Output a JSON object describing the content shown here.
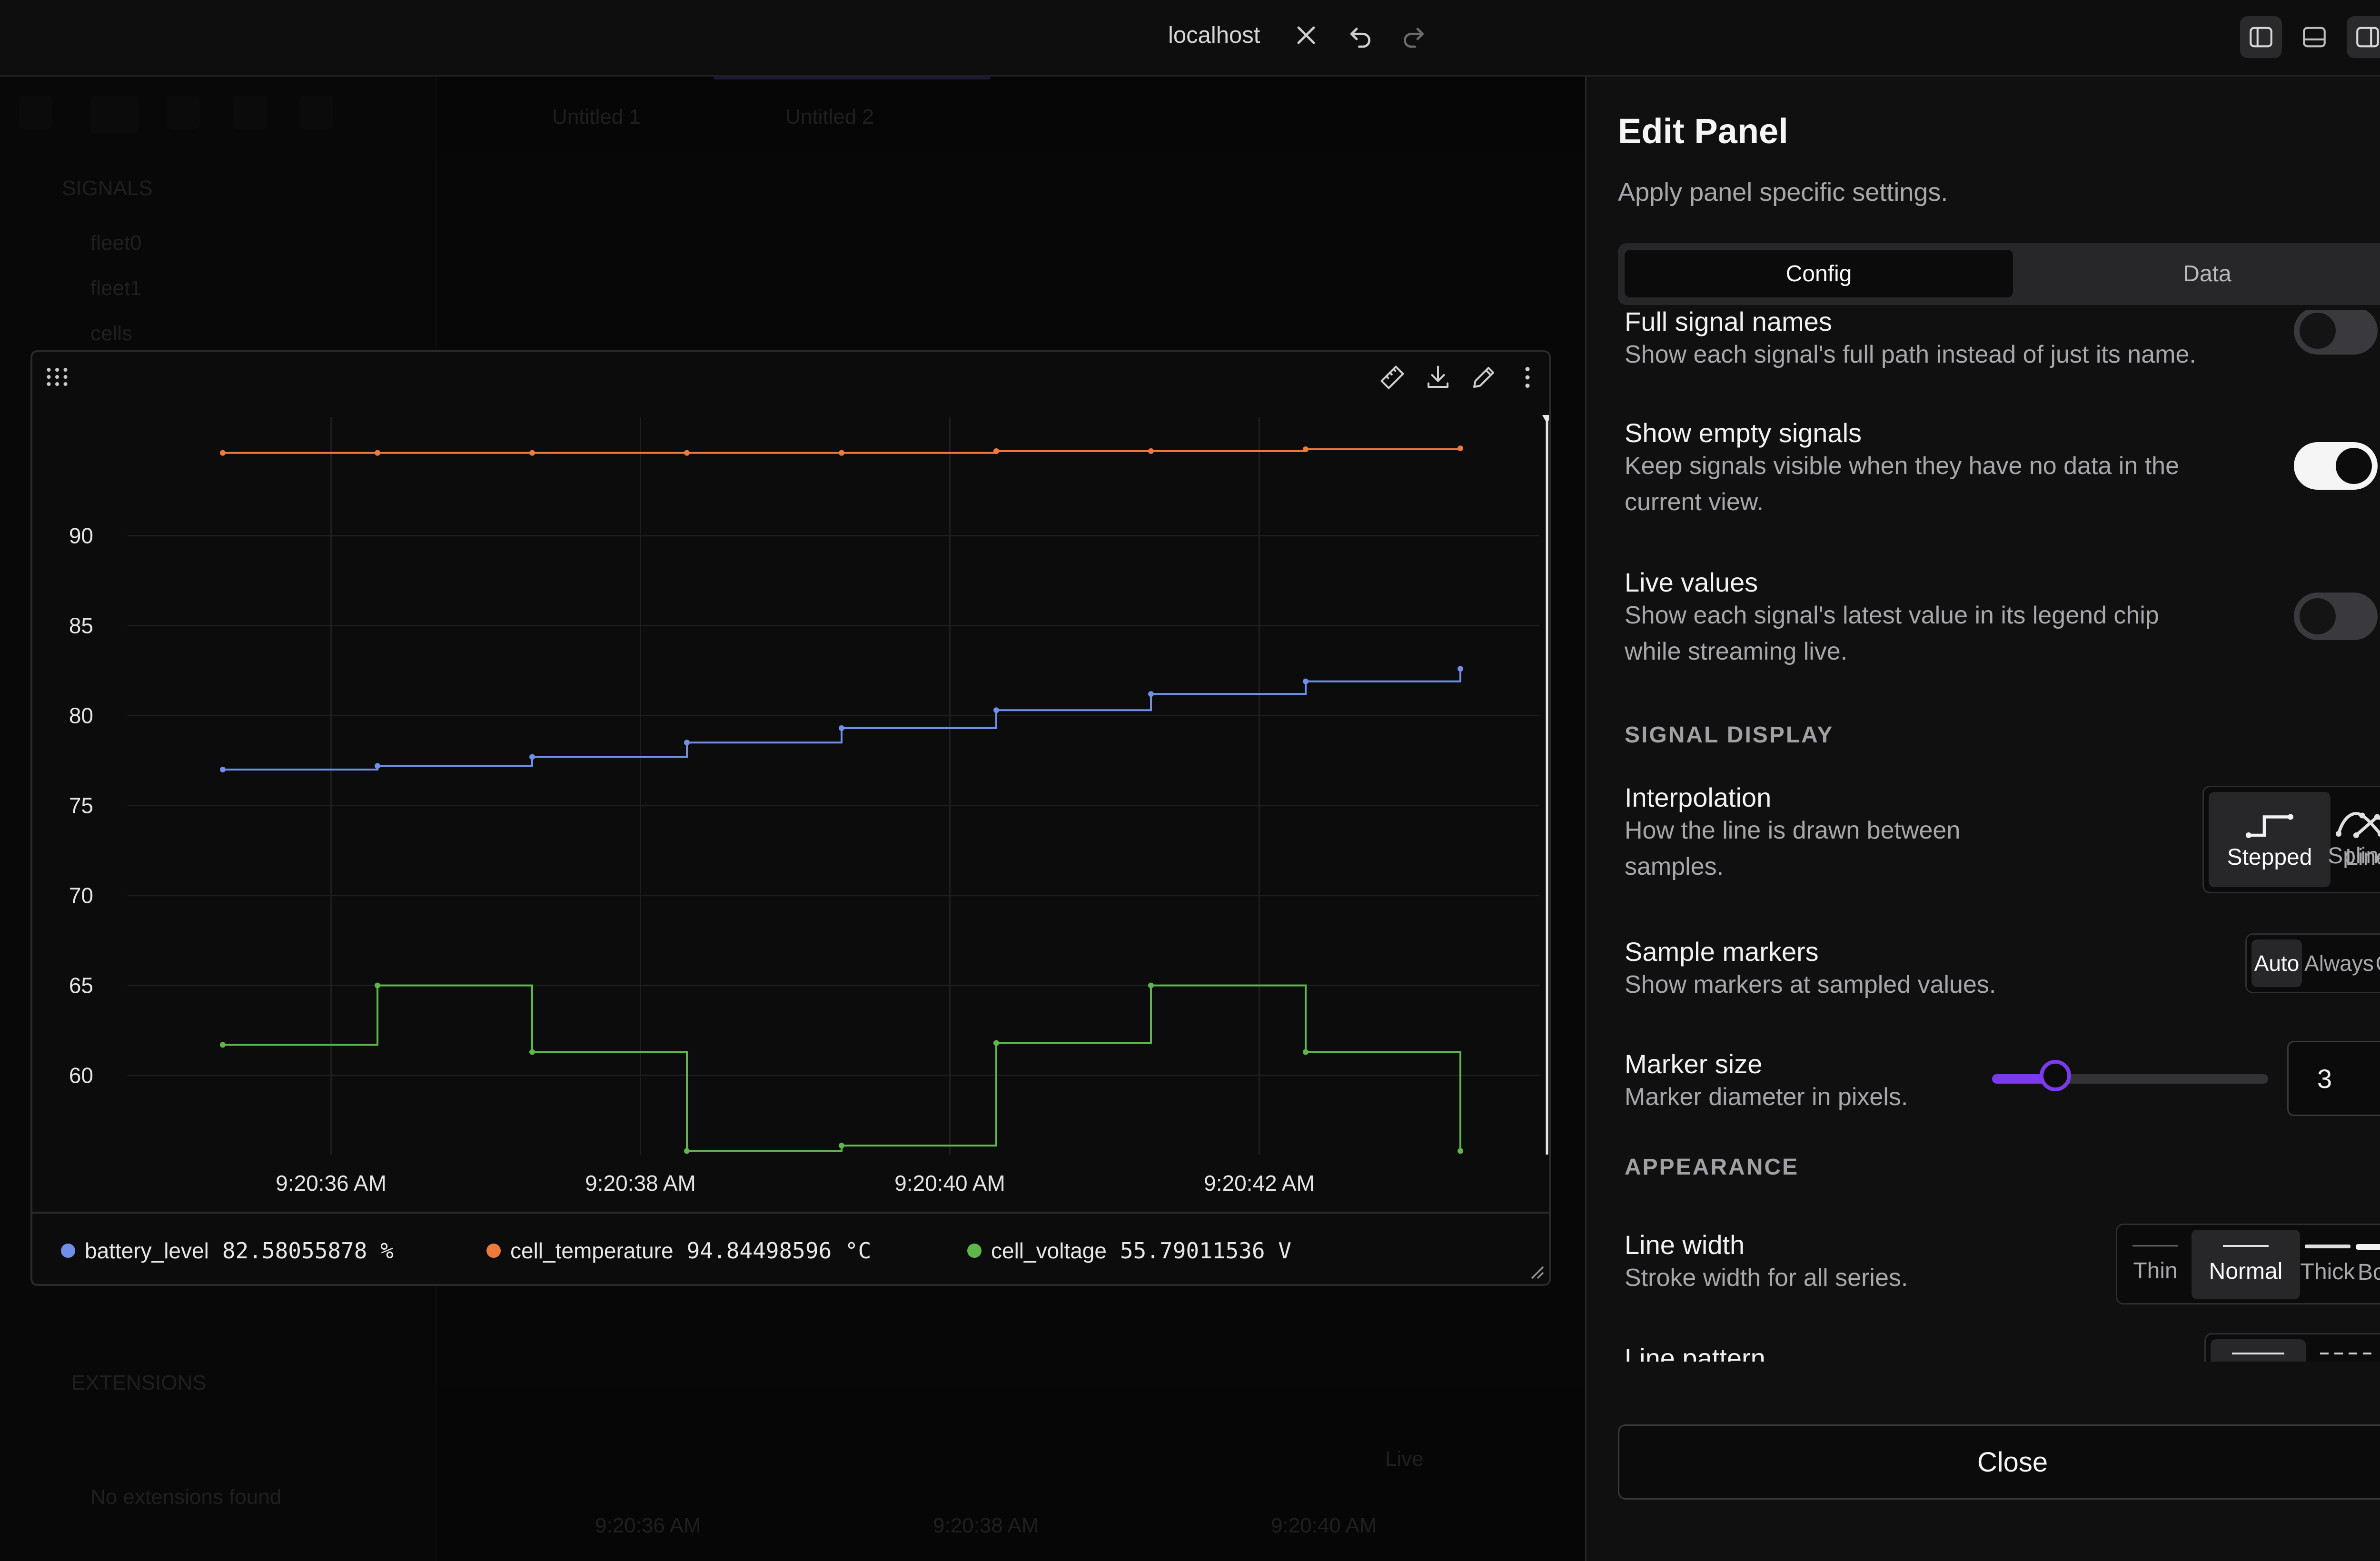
{
  "titlebar": {
    "title": "localhost"
  },
  "background_app": {
    "sidebar": {
      "section_label": "SIGNALS",
      "items": [
        "fleet0",
        "fleet1",
        "cells"
      ],
      "extensions_label": "EXTENSIONS",
      "empty_text": "No extensions found"
    },
    "tabs": [
      "Untitled 1",
      "Untitled 2"
    ],
    "footer_times": [
      "9:20:36 AM",
      "9:20:38 AM",
      "9:20:40 AM"
    ],
    "live_label": "Live"
  },
  "chart_panel": {
    "legend": [
      {
        "name": "battery_level",
        "value": "82.58055878 %",
        "color": "#6f8fe8"
      },
      {
        "name": "cell_temperature",
        "value": "94.84498596 °C",
        "color": "#ee7a3c"
      },
      {
        "name": "cell_voltage",
        "value": "55.79011536 V",
        "color": "#5fb64a"
      }
    ]
  },
  "chart_data": {
    "type": "line",
    "interpolation": "stepped",
    "markers": true,
    "x": [
      "9:20:35.3",
      "9:20:36.3",
      "9:20:37.3",
      "9:20:38.3",
      "9:20:39.3",
      "9:20:40.3",
      "9:20:41.3",
      "9:20:42.3",
      "9:20:43.3"
    ],
    "x_ticks": [
      "9:20:36 AM",
      "9:20:38 AM",
      "9:20:40 AM",
      "9:20:42 AM"
    ],
    "y_ticks": [
      60,
      65,
      70,
      75,
      80,
      85,
      90
    ],
    "ylim": [
      55.6,
      96.6
    ],
    "grid": true,
    "series": [
      {
        "name": "battery_level",
        "color": "#6f8fe8",
        "values": [
          77.0,
          77.2,
          77.7,
          78.5,
          79.3,
          80.3,
          81.2,
          81.9,
          82.6
        ]
      },
      {
        "name": "cell_temperature",
        "color": "#ee7a3c",
        "values": [
          94.6,
          94.6,
          94.6,
          94.6,
          94.6,
          94.7,
          94.7,
          94.8,
          94.85
        ]
      },
      {
        "name": "cell_voltage",
        "color": "#5fb64a",
        "values": [
          61.7,
          65.0,
          61.3,
          55.8,
          56.1,
          61.8,
          65.0,
          61.3,
          55.8
        ]
      }
    ]
  },
  "drawer": {
    "title": "Edit Panel",
    "subtitle": "Apply panel specific settings.",
    "tabs": {
      "config": "Config",
      "data": "Data"
    },
    "settings": {
      "full_signal_names": {
        "title": "Full signal names",
        "desc": "Show each signal's full path instead of just its name.",
        "enabled": false
      },
      "show_empty_signals": {
        "title": "Show empty signals",
        "desc1": "Keep signals visible when they have no data in the",
        "desc2": "current view.",
        "enabled": true
      },
      "live_values": {
        "title": "Live values",
        "desc1": "Show each signal's latest value in its legend chip",
        "desc2": "while streaming live.",
        "enabled": false
      }
    },
    "signal_display": {
      "section": "SIGNAL DISPLAY",
      "interpolation": {
        "title": "Interpolation",
        "desc1": "How the line is drawn between",
        "desc2": "samples.",
        "options": [
          "Stepped",
          "Linear",
          "Spline"
        ],
        "selected": "Stepped"
      },
      "sample_markers": {
        "title": "Sample markers",
        "desc": "Show markers at sampled values.",
        "options": [
          "Auto",
          "Always",
          "Off"
        ],
        "selected": "Auto"
      },
      "marker_size": {
        "title": "Marker size",
        "desc": "Marker diameter in pixels.",
        "value": "3",
        "slider_fraction": 0.2
      }
    },
    "appearance": {
      "section": "APPEARANCE",
      "line_width": {
        "title": "Line width",
        "desc": "Stroke width for all series.",
        "options": [
          "Thin",
          "Normal",
          "Thick",
          "Bold"
        ],
        "selected": "Normal"
      },
      "line_pattern": {
        "title": "Line pattern"
      }
    },
    "close_label": "Close"
  }
}
